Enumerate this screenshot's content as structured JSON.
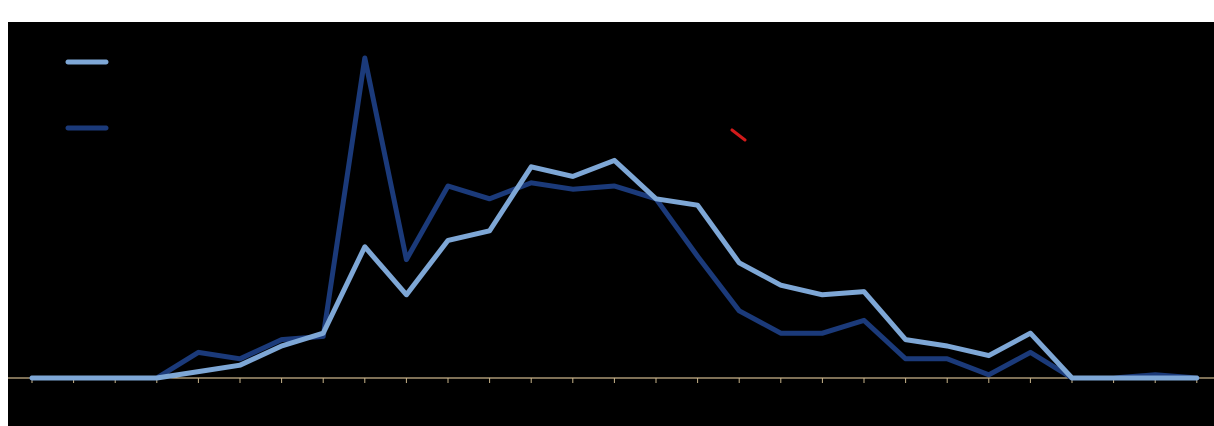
{
  "colors": {
    "background": "#000000",
    "series_light": "#7ea7d6",
    "series_dark": "#1b3a7a",
    "axis": "#c9b48a",
    "marker": "#d11a1a"
  },
  "legend": {
    "placement": "top-left",
    "entries": [
      {
        "color": "#7ea7d6"
      },
      {
        "color": "#1b3a7a"
      }
    ]
  },
  "chart_data": {
    "type": "line",
    "title": "",
    "xlabel": "",
    "ylabel": "",
    "grid": false,
    "x": [
      1,
      2,
      3,
      4,
      5,
      6,
      7,
      8,
      9,
      10,
      11,
      12,
      13,
      14,
      15,
      16,
      17,
      18,
      19,
      20,
      21,
      22,
      23,
      24,
      25,
      26,
      27,
      28,
      29
    ],
    "ylim": [
      0,
      100
    ],
    "series": [
      {
        "color": "#7ea7d6",
        "values": [
          0,
          0,
          0,
          0,
          2,
          4,
          10,
          14,
          41,
          26,
          43,
          46,
          66,
          63,
          68,
          56,
          54,
          36,
          29,
          26,
          27,
          12,
          10,
          7,
          14,
          0,
          0,
          0,
          0
        ]
      },
      {
        "color": "#1b3a7a",
        "values": [
          0,
          0,
          0,
          0,
          8,
          6,
          12,
          13,
          100,
          37,
          60,
          56,
          61,
          59,
          60,
          56,
          38,
          21,
          14,
          14,
          18,
          6,
          6,
          1,
          8,
          0,
          0,
          1,
          0
        ]
      }
    ]
  }
}
